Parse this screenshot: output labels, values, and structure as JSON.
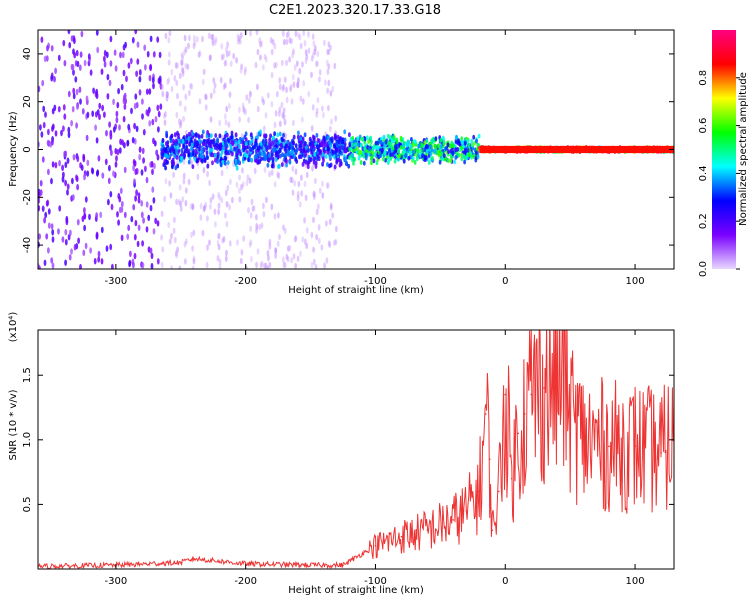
{
  "title": "C2E1.2023.320.17.33.G18",
  "chart_data": [
    {
      "type": "heatmap",
      "xlabel": "Height of straight line (km)",
      "ylabel": "Frequency (Hz)",
      "xlim": [
        -360,
        130
      ],
      "ylim": [
        -50,
        50
      ],
      "xticks": [
        -300,
        -200,
        -100,
        0,
        100
      ],
      "yticks": [
        -40,
        -20,
        0,
        20,
        40
      ],
      "colorbar": {
        "label": "Normalized spectral amplitude",
        "range": [
          0.0,
          1.0
        ],
        "ticks": [
          "0.0",
          "0.2",
          "0.4",
          "0.6",
          "0.8"
        ],
        "ticks_values": [
          0.0,
          0.2,
          0.4,
          0.6,
          0.8
        ],
        "colors": [
          "#e8d8ff",
          "#7a00ff",
          "#0000ff",
          "#00ffff",
          "#00ff00",
          "#ffff00",
          "#ff0000",
          "#ff0080"
        ]
      },
      "regions": [
        {
          "x_range": [
            -360,
            -265
          ],
          "freq_spread": 50,
          "amplitude": 0.15
        },
        {
          "x_range": [
            -265,
            -130
          ],
          "freq_spread": 50,
          "amplitude": 0.05
        },
        {
          "x_range": [
            -265,
            -120
          ],
          "freq_spread": 8,
          "amplitude": 0.3
        },
        {
          "x_range": [
            -120,
            -20
          ],
          "freq_spread": 6,
          "amplitude": 0.45
        },
        {
          "x_range": [
            -20,
            130
          ],
          "freq_spread": 1,
          "amplitude": 0.85
        }
      ]
    },
    {
      "type": "line",
      "xlabel": "Height of straight line (km)",
      "ylabel": "SNR (10 * v/v)",
      "ylabel_multiplier": "(x10⁴)",
      "xlim": [
        -360,
        130
      ],
      "ylim": [
        0,
        1.85
      ],
      "xticks": [
        -300,
        -200,
        -100,
        0,
        100
      ],
      "yticks": [
        "0.5",
        "1.0",
        "1.5"
      ],
      "yticks_values": [
        0.5,
        1.0,
        1.5
      ],
      "series": [
        {
          "color": "#ee3333",
          "x": [
            -360,
            -300,
            -250,
            -240,
            -220,
            -200,
            -150,
            -125,
            -110,
            -100,
            -80,
            -60,
            -40,
            -30,
            -20,
            -15,
            -12,
            -10,
            -5,
            0,
            5,
            10,
            15,
            20,
            30,
            40,
            45,
            50,
            60,
            80,
            100,
            120,
            130
          ],
          "y": [
            0.02,
            0.03,
            0.05,
            0.08,
            0.06,
            0.04,
            0.03,
            0.03,
            0.12,
            0.18,
            0.25,
            0.3,
            0.38,
            0.45,
            0.6,
            1.2,
            0.85,
            0.3,
            0.6,
            1.35,
            0.7,
            1.05,
            1.2,
            1.35,
            1.4,
            1.45,
            1.5,
            1.2,
            1.0,
            0.95,
            0.95,
            0.9,
            1.0
          ]
        }
      ]
    }
  ]
}
